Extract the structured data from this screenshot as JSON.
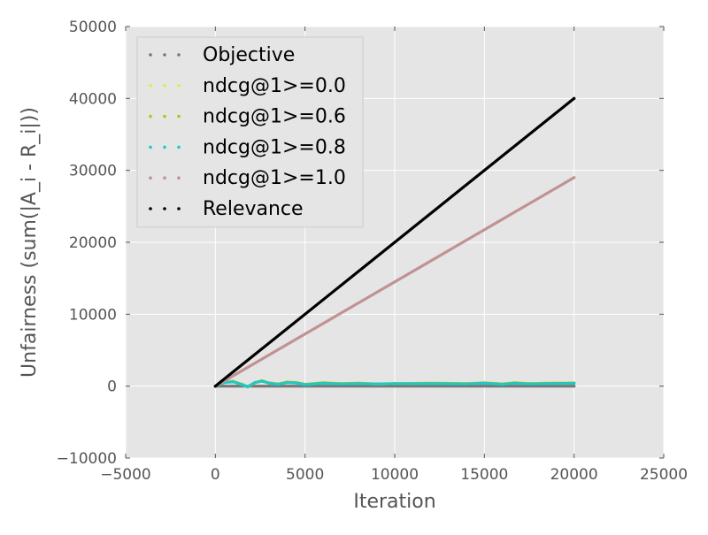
{
  "chart_data": {
    "type": "line",
    "title": "",
    "xlabel": "Iteration",
    "ylabel": "Unfairness (sum(|A_i - R_i|))",
    "xlim": [
      -5000,
      25000
    ],
    "ylim": [
      -10000,
      50000
    ],
    "xticks": [
      -5000,
      0,
      5000,
      10000,
      15000,
      20000,
      25000
    ],
    "xtick_labels": [
      "−5000",
      "0",
      "5000",
      "10000",
      "15000",
      "20000",
      "25000"
    ],
    "yticks": [
      -10000,
      0,
      10000,
      20000,
      30000,
      40000,
      50000
    ],
    "ytick_labels": [
      "−10000",
      "0",
      "10000",
      "20000",
      "30000",
      "40000",
      "50000"
    ],
    "grid": true,
    "background_color": "#e5e5e5",
    "legend_position": "top-left",
    "series": [
      {
        "name": "Objective",
        "color": "#777777",
        "x": [
          0,
          20000
        ],
        "y": [
          0,
          0
        ]
      },
      {
        "name": "ndcg@1>=0.0",
        "color": "#e8e84a",
        "x": [
          0,
          500,
          1000,
          1500,
          1800,
          2200,
          2600,
          3000,
          3500,
          4000,
          4500,
          5000,
          6000,
          7000,
          8000,
          9000,
          10000,
          12000,
          14000,
          15000,
          16000,
          16700,
          17500,
          18500,
          20000
        ],
        "y": [
          0,
          600,
          700,
          200,
          -100,
          500,
          800,
          400,
          300,
          600,
          500,
          200,
          500,
          350,
          400,
          300,
          350,
          400,
          350,
          450,
          300,
          500,
          350,
          400,
          450
        ]
      },
      {
        "name": "ndcg@1>=0.6",
        "color": "#b5c21c",
        "x": [
          0,
          500,
          1000,
          1500,
          1800,
          2200,
          2600,
          3000,
          3500,
          4000,
          4500,
          5000,
          6000,
          7000,
          8000,
          9000,
          10000,
          12000,
          14000,
          15000,
          16000,
          16700,
          17500,
          18500,
          20000
        ],
        "y": [
          0,
          550,
          650,
          250,
          -50,
          450,
          750,
          450,
          300,
          550,
          500,
          250,
          450,
          350,
          400,
          300,
          350,
          400,
          350,
          450,
          300,
          450,
          350,
          400,
          400
        ]
      },
      {
        "name": "ndcg@1>=0.8",
        "color": "#22c7c4",
        "x": [
          0,
          500,
          1000,
          1500,
          1800,
          2200,
          2600,
          3000,
          3500,
          4000,
          4500,
          5000,
          6000,
          7000,
          8000,
          9000,
          10000,
          12000,
          14000,
          15000,
          16000,
          16700,
          17500,
          18500,
          20000
        ],
        "y": [
          0,
          500,
          600,
          200,
          -100,
          500,
          700,
          400,
          250,
          500,
          450,
          200,
          400,
          300,
          350,
          300,
          350,
          350,
          300,
          400,
          250,
          400,
          300,
          350,
          400
        ]
      },
      {
        "name": "ndcg@1>=1.0",
        "color": "#c09294",
        "x": [
          0,
          20000
        ],
        "y": [
          0,
          29000
        ]
      },
      {
        "name": "Relevance",
        "color": "#000000",
        "x": [
          0,
          20000
        ],
        "y": [
          0,
          40000
        ]
      }
    ]
  }
}
